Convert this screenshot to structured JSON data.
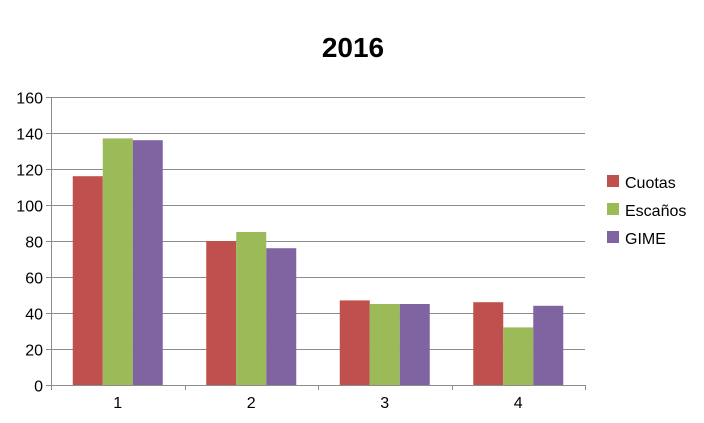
{
  "chart_data": {
    "type": "bar",
    "title": "2016",
    "categories": [
      "1",
      "2",
      "3",
      "4"
    ],
    "series": [
      {
        "name": "Cuotas",
        "color": "#C0504D",
        "values": [
          116,
          80,
          47,
          46
        ]
      },
      {
        "name": "Escaños",
        "color": "#9BBB59",
        "values": [
          137,
          85,
          45,
          32
        ]
      },
      {
        "name": "GIME",
        "color": "#8064A2",
        "values": [
          136,
          76,
          45,
          44
        ]
      }
    ],
    "ylim": [
      0,
      160
    ],
    "yticks": [
      0,
      20,
      40,
      60,
      80,
      100,
      120,
      140,
      160
    ],
    "grid": true,
    "legend_position": "right",
    "xlabel": "",
    "ylabel": ""
  }
}
